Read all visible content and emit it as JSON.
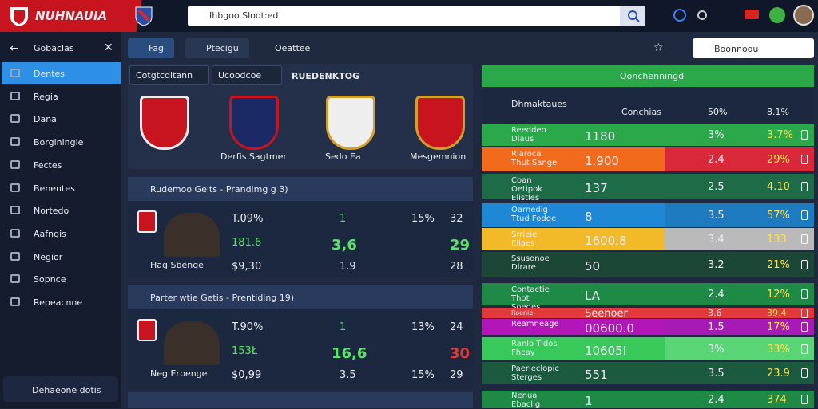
{
  "header": {
    "logo": "NUHNAUIA",
    "search": "Ihbgoo Sloot:ed"
  },
  "sidebar": {
    "title": "Gobaclas",
    "items": [
      "Dentes",
      "Regia",
      "Dana",
      "Borginingie",
      "Fectes",
      "Benentes",
      "Nortedo",
      "Aafngis",
      "Negior",
      "Sopnce",
      "Repeacnne"
    ],
    "footer": "Dehaeone dotis"
  },
  "center": {
    "toolbar": [
      "Fag",
      "Ptecigu",
      "Oeattee"
    ],
    "filters": [
      "Cotgtcditann",
      "Ucoodcoe"
    ],
    "title": "RUEDENKTOG",
    "teams": [
      "Derfis Sagtmer",
      "Sedo Ea",
      "Mesgemnion"
    ],
    "matches": [
      {
        "title": "Rudemoo Gelts - Prandimg g 3)",
        "label": "Hag Sbenge",
        "rows": [
          {
            "a": "T.09%",
            "b": "1",
            "c": "15%",
            "d": "32"
          },
          {
            "a": "181.6",
            "b": "3,6",
            "d": "29"
          },
          {
            "a": "$9,30",
            "b": "1.9",
            "d": "28"
          }
        ]
      },
      {
        "title": "Parter wtie Getis - Prentiding 19)",
        "label": "Neg Erbenge",
        "rows": [
          {
            "a": "T.90%",
            "b": "1",
            "c": "13%",
            "d": "24"
          },
          {
            "a": "153Ł",
            "b": "16,6",
            "d": "30"
          },
          {
            "a": "$0,99",
            "b": "3.5",
            "c": "15%",
            "d": "29"
          }
        ]
      }
    ]
  },
  "right": {
    "search": "Boonnoou",
    "title": "Oonchenningd",
    "columns": [
      "Dhmaktaues",
      "Conchias",
      "50%",
      "8.1%"
    ],
    "rows": [
      {
        "name": "Reeddeo Dlaus",
        "value": "1180",
        "a": "3%",
        "b": "3.7%"
      },
      {
        "name": "Rlaroca Thut Sange",
        "value": "1.900",
        "a": "2.4",
        "b": "29%"
      },
      {
        "name": "Coan Oetipok Elistles",
        "value": "137",
        "a": "2.5",
        "b": "4.10"
      },
      {
        "name": "Oarnedig Ttud Fodge",
        "value": "8",
        "a": "3.5",
        "b": "57%"
      },
      {
        "name": "Srrieie Ellaes",
        "value": "1600.8",
        "a": "3.4",
        "b": "133"
      },
      {
        "name": "Ssusonoe Dlrare",
        "value": "50",
        "a": "3.2",
        "b": "21%"
      },
      {
        "name": "Contactie Thot Soeges",
        "value": "LA",
        "a": "2.4",
        "b": "12%"
      },
      {
        "name": "Roonie",
        "value": "Seenoer",
        "a": "3.6",
        "b": "39.4"
      },
      {
        "name": "Reamneage",
        "value": "00600.0",
        "a": "1.5",
        "b": "17%"
      },
      {
        "name": "Ranlo Tidos Fhcay",
        "value": "10605I",
        "a": "3%",
        "b": "33%"
      },
      {
        "name": "Paerieclopic Sterges",
        "value": "551",
        "a": "3.5",
        "b": "23.9"
      },
      {
        "name": "Nenua Ebaclig",
        "value": "1",
        "a": "2.4",
        "b": "374"
      }
    ]
  }
}
